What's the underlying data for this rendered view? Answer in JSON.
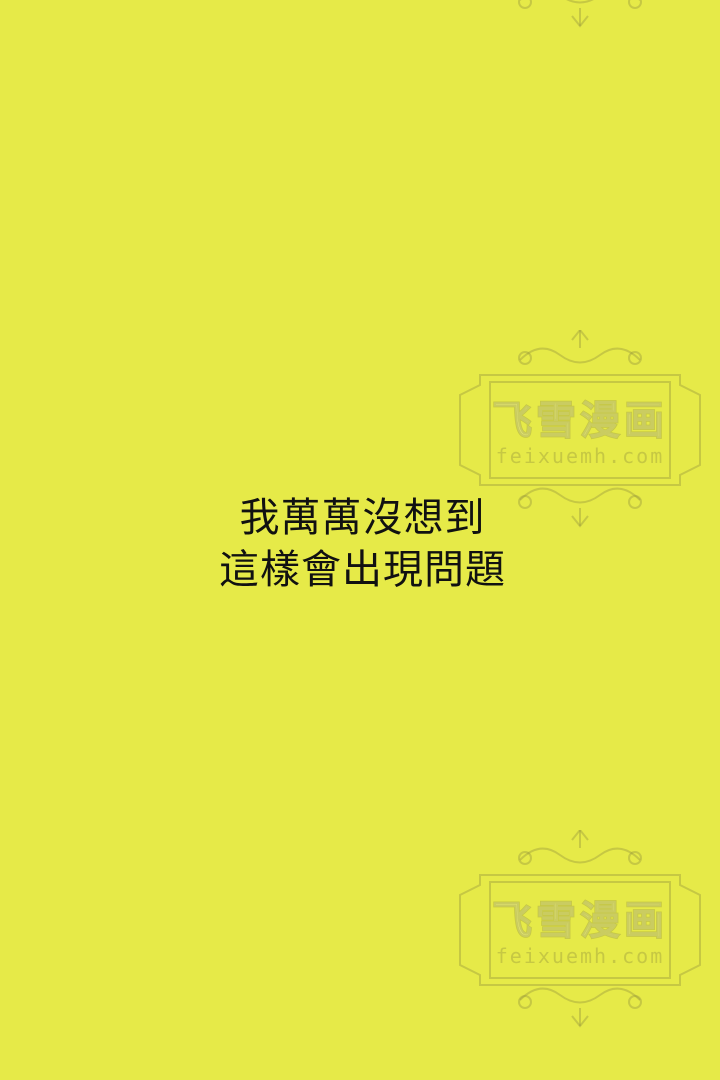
{
  "colors": {
    "background": "#E6EA48",
    "text": "#111111",
    "watermark": "#B4B460"
  },
  "caption": {
    "lines": [
      "我萬萬沒想到",
      "這樣會出現問題"
    ]
  },
  "watermark": {
    "title": "飞雪漫画",
    "site": "feixuemh.com"
  }
}
